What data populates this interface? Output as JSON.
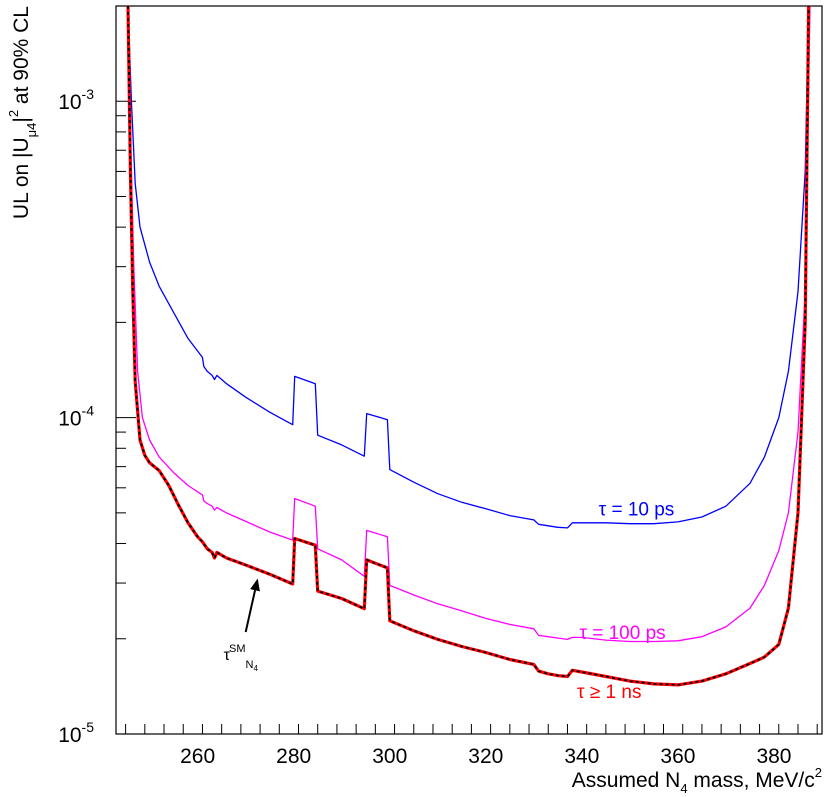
{
  "chart_data": {
    "type": "line",
    "title": "",
    "xlabel": {
      "prefix": "Assumed N",
      "sub": "4",
      "middle": " mass, MeV/c",
      "sup": "2"
    },
    "ylabel": {
      "prefix": "UL on |U",
      "sub": "μ4",
      "middle": "|",
      "sup": "2",
      "suffix": " at 90% CL"
    },
    "xlim": [
      243,
      390
    ],
    "ylim": [
      1e-05,
      0.002
    ],
    "yscale": "log",
    "x_ticks": [
      260,
      280,
      300,
      320,
      340,
      360,
      380
    ],
    "x_tick_labels": [
      "260",
      "280",
      "300",
      "320",
      "340",
      "360",
      "380"
    ],
    "y_ticks": [
      {
        "value": 1e-05,
        "base": "10",
        "exp": "-5"
      },
      {
        "value": 0.0001,
        "base": "10",
        "exp": "-4"
      },
      {
        "value": 0.001,
        "base": "10",
        "exp": "-3"
      }
    ],
    "annotation": {
      "text": "τ",
      "sup": "SM",
      "sub": "N",
      "subsub": "4",
      "arrow_from": [
        270,
        2.1e-05
      ],
      "arrow_to": [
        272.5,
        3.1e-05
      ]
    },
    "series": [
      {
        "name": "τ = 10 ps",
        "label": "τ = 10 ps",
        "color": "#0000ff",
        "style": "solid",
        "label_at": [
          343.5,
          4.9e-05
        ],
        "points": [
          [
            245.5,
            0.002
          ],
          [
            246.2,
            0.001
          ],
          [
            247,
            0.00055
          ],
          [
            248,
            0.0004
          ],
          [
            250,
            0.00031
          ],
          [
            252,
            0.00026
          ],
          [
            255,
            0.000215
          ],
          [
            258,
            0.000178
          ],
          [
            261,
            0.000155
          ],
          [
            261.3,
            0.000145
          ],
          [
            262,
            0.00014
          ],
          [
            263,
            0.000136
          ],
          [
            263.5,
            0.000132
          ],
          [
            264,
            0.000136
          ],
          [
            266,
            0.000128
          ],
          [
            270,
            0.000116
          ],
          [
            275,
            0.000104
          ],
          [
            279.8,
            9.5e-05
          ],
          [
            280.2,
            0.000135
          ],
          [
            284.5,
            0.000128
          ],
          [
            285,
            8.8e-05
          ],
          [
            290,
            8.2e-05
          ],
          [
            294.7,
            7.55e-05
          ],
          [
            295.2,
            0.000103
          ],
          [
            299.5,
            9.85e-05
          ],
          [
            300,
            6.85e-05
          ],
          [
            305,
            6.25e-05
          ],
          [
            310,
            5.75e-05
          ],
          [
            315,
            5.4e-05
          ],
          [
            320,
            5.15e-05
          ],
          [
            325,
            4.9e-05
          ],
          [
            330,
            4.75e-05
          ],
          [
            331,
            4.6e-05
          ],
          [
            333,
            4.55e-05
          ],
          [
            335,
            4.5e-05
          ],
          [
            337,
            4.48e-05
          ],
          [
            338,
            4.65e-05
          ],
          [
            340,
            4.65e-05
          ],
          [
            345,
            4.65e-05
          ],
          [
            350,
            4.62e-05
          ],
          [
            355,
            4.62e-05
          ],
          [
            360,
            4.68e-05
          ],
          [
            365,
            4.85e-05
          ],
          [
            370,
            5.25e-05
          ],
          [
            375,
            6.2e-05
          ],
          [
            378,
            7.5e-05
          ],
          [
            381,
            0.0001
          ],
          [
            383,
            0.00014
          ],
          [
            385,
            0.00025
          ],
          [
            386.5,
            0.0006
          ],
          [
            387.2,
            0.002
          ]
        ]
      },
      {
        "name": "τ = 100 ps",
        "label": "τ = 100 ps",
        "color": "#ff00ff",
        "style": "solid",
        "label_at": [
          339.5,
          2e-05
        ],
        "points": [
          [
            245.5,
            0.002
          ],
          [
            246,
            0.0008
          ],
          [
            246.7,
            0.0003
          ],
          [
            247.5,
            0.00014
          ],
          [
            248.5,
            0.0001
          ],
          [
            250,
            8.5e-05
          ],
          [
            252,
            7.5e-05
          ],
          [
            255,
            6.7e-05
          ],
          [
            258,
            6.1e-05
          ],
          [
            261,
            5.7e-05
          ],
          [
            261.3,
            5.45e-05
          ],
          [
            262,
            5.35e-05
          ],
          [
            263,
            5.25e-05
          ],
          [
            263.5,
            5.1e-05
          ],
          [
            264,
            5.2e-05
          ],
          [
            266,
            5e-05
          ],
          [
            270,
            4.7e-05
          ],
          [
            275,
            4.35e-05
          ],
          [
            279.8,
            4.1e-05
          ],
          [
            280.2,
            5.55e-05
          ],
          [
            284.5,
            5.25e-05
          ],
          [
            285,
            3.85e-05
          ],
          [
            290,
            3.55e-05
          ],
          [
            294.7,
            3.15e-05
          ],
          [
            295.2,
            4.4e-05
          ],
          [
            299.5,
            4.2e-05
          ],
          [
            300,
            2.95e-05
          ],
          [
            305,
            2.75e-05
          ],
          [
            310,
            2.58e-05
          ],
          [
            315,
            2.45e-05
          ],
          [
            320,
            2.32e-05
          ],
          [
            325,
            2.22e-05
          ],
          [
            330,
            2.15e-05
          ],
          [
            331,
            2.05e-05
          ],
          [
            333,
            2.03e-05
          ],
          [
            335,
            2.01e-05
          ],
          [
            337,
            1.99e-05
          ],
          [
            338,
            2.02e-05
          ],
          [
            340,
            2.02e-05
          ],
          [
            345,
            1.98e-05
          ],
          [
            350,
            1.96e-05
          ],
          [
            355,
            1.96e-05
          ],
          [
            360,
            1.97e-05
          ],
          [
            365,
            2.03e-05
          ],
          [
            370,
            2.18e-05
          ],
          [
            375,
            2.5e-05
          ],
          [
            378,
            2.95e-05
          ],
          [
            381,
            3.8e-05
          ],
          [
            383,
            5e-05
          ],
          [
            385,
            9e-05
          ],
          [
            386.5,
            0.00025
          ],
          [
            387.5,
            0.002
          ]
        ]
      },
      {
        "name": "τ ≥ 1 ns",
        "label": "τ ≥ 1 ns",
        "color": "#ff0000",
        "style": "solid",
        "label_at": [
          339,
          1.3e-05
        ],
        "points": [
          [
            245.5,
            0.002
          ],
          [
            246,
            0.0006
          ],
          [
            246.5,
            0.00025
          ],
          [
            247,
            0.00013
          ],
          [
            248,
            8.5e-05
          ],
          [
            249,
            7.6e-05
          ],
          [
            250,
            7.2e-05
          ],
          [
            252,
            6.8e-05
          ],
          [
            254,
            6.1e-05
          ],
          [
            256,
            5.3e-05
          ],
          [
            258,
            4.65e-05
          ],
          [
            260,
            4.2e-05
          ],
          [
            261,
            4.05e-05
          ],
          [
            262,
            3.85e-05
          ],
          [
            263,
            3.75e-05
          ],
          [
            263.5,
            3.6e-05
          ],
          [
            264,
            3.75e-05
          ],
          [
            266,
            3.6e-05
          ],
          [
            270,
            3.42e-05
          ],
          [
            275,
            3.2e-05
          ],
          [
            279.8,
            2.98e-05
          ],
          [
            280.2,
            4.15e-05
          ],
          [
            284.5,
            3.95e-05
          ],
          [
            285,
            2.83e-05
          ],
          [
            290,
            2.68e-05
          ],
          [
            294.7,
            2.49e-05
          ],
          [
            295.2,
            3.55e-05
          ],
          [
            299.5,
            3.35e-05
          ],
          [
            300,
            2.28e-05
          ],
          [
            305,
            2.12e-05
          ],
          [
            310,
            1.99e-05
          ],
          [
            315,
            1.89e-05
          ],
          [
            320,
            1.81e-05
          ],
          [
            325,
            1.72e-05
          ],
          [
            330,
            1.66e-05
          ],
          [
            331,
            1.58e-05
          ],
          [
            333,
            1.55e-05
          ],
          [
            335,
            1.53e-05
          ],
          [
            337,
            1.52e-05
          ],
          [
            338,
            1.59e-05
          ],
          [
            340,
            1.57e-05
          ],
          [
            345,
            1.52e-05
          ],
          [
            350,
            1.47e-05
          ],
          [
            355,
            1.44e-05
          ],
          [
            360,
            1.43e-05
          ],
          [
            365,
            1.47e-05
          ],
          [
            370,
            1.55e-05
          ],
          [
            375,
            1.67e-05
          ],
          [
            378,
            1.75e-05
          ],
          [
            381,
            1.92e-05
          ],
          [
            383,
            2.5e-05
          ],
          [
            385,
            5e-05
          ],
          [
            386.5,
            0.0002
          ],
          [
            387.2,
            0.002
          ]
        ]
      },
      {
        "name": "black dashed overlay",
        "label": "",
        "color": "#000000",
        "style": "dashed",
        "points": [
          [
            245.5,
            0.002
          ],
          [
            246,
            0.0006
          ],
          [
            246.5,
            0.00025
          ],
          [
            247,
            0.00013
          ],
          [
            248,
            8.5e-05
          ],
          [
            249,
            7.6e-05
          ],
          [
            250,
            7.2e-05
          ],
          [
            252,
            6.8e-05
          ],
          [
            254,
            6.1e-05
          ],
          [
            256,
            5.3e-05
          ],
          [
            258,
            4.65e-05
          ],
          [
            260,
            4.2e-05
          ],
          [
            261,
            4.05e-05
          ],
          [
            262,
            3.85e-05
          ],
          [
            263,
            3.75e-05
          ],
          [
            263.5,
            3.6e-05
          ],
          [
            264,
            3.75e-05
          ],
          [
            266,
            3.6e-05
          ],
          [
            270,
            3.42e-05
          ],
          [
            275,
            3.2e-05
          ],
          [
            279.8,
            2.98e-05
          ],
          [
            280.2,
            4.15e-05
          ],
          [
            284.5,
            3.95e-05
          ],
          [
            285,
            2.83e-05
          ],
          [
            290,
            2.68e-05
          ],
          [
            294.7,
            2.49e-05
          ],
          [
            295.2,
            3.55e-05
          ],
          [
            299.5,
            3.35e-05
          ],
          [
            300,
            2.28e-05
          ],
          [
            305,
            2.12e-05
          ],
          [
            310,
            1.99e-05
          ],
          [
            315,
            1.89e-05
          ],
          [
            320,
            1.81e-05
          ],
          [
            325,
            1.72e-05
          ],
          [
            330,
            1.66e-05
          ],
          [
            331,
            1.58e-05
          ],
          [
            333,
            1.55e-05
          ],
          [
            335,
            1.53e-05
          ],
          [
            337,
            1.52e-05
          ],
          [
            338,
            1.59e-05
          ],
          [
            340,
            1.57e-05
          ],
          [
            345,
            1.52e-05
          ],
          [
            350,
            1.47e-05
          ],
          [
            355,
            1.44e-05
          ],
          [
            360,
            1.43e-05
          ],
          [
            365,
            1.47e-05
          ],
          [
            370,
            1.55e-05
          ],
          [
            375,
            1.67e-05
          ],
          [
            378,
            1.75e-05
          ],
          [
            381,
            1.92e-05
          ],
          [
            383,
            2.5e-05
          ],
          [
            385,
            5e-05
          ],
          [
            386.5,
            0.0002
          ],
          [
            387.2,
            0.002
          ]
        ]
      }
    ]
  }
}
